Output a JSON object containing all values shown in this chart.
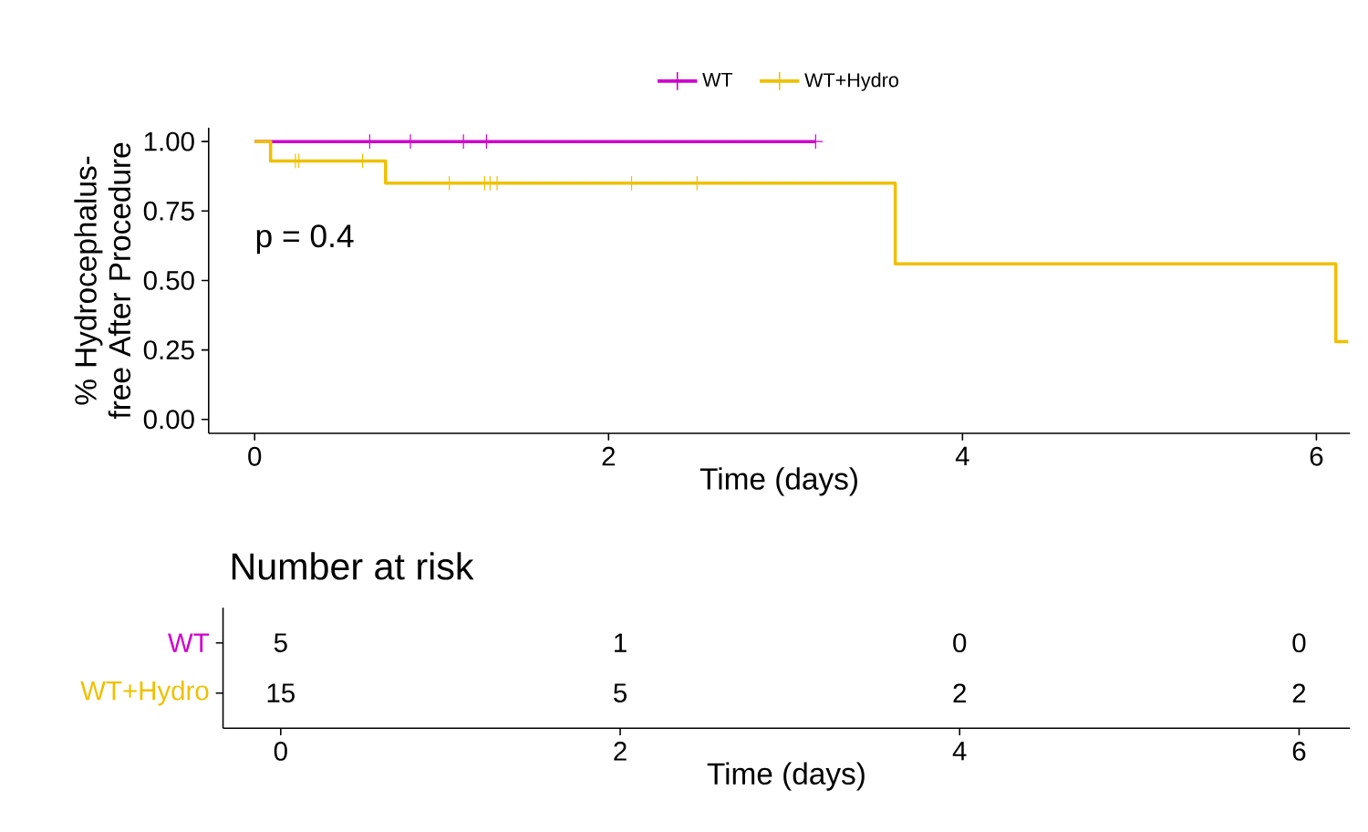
{
  "chart_data": [
    {
      "type": "step",
      "xlabel": "Time (days)",
      "ylabel": "% Hydrocephalus-free After Procedure",
      "xlim": [
        -0.26,
        6.19
      ],
      "xticks": [
        0,
        2,
        4,
        6
      ],
      "ylim": [
        -0.05,
        1.05
      ],
      "yticks": [
        {
          "value": 0,
          "label": "0.00"
        },
        {
          "value": 0.25,
          "label": "0.25"
        },
        {
          "value": 0.5,
          "label": "0.50"
        },
        {
          "value": 0.75,
          "label": "0.75"
        },
        {
          "value": 1,
          "label": "1.00"
        }
      ],
      "legend": "top",
      "annotations": [
        "p = 0.4"
      ],
      "series": [
        {
          "name": "WT",
          "color": "#cd00cd",
          "x": [
            0,
            3.17
          ],
          "values": [
            1,
            1
          ]
        },
        {
          "name": "WT+Hydro",
          "color": "#efc000",
          "x": [
            0,
            0.09,
            0.74,
            3.62,
            6.11,
            6.18
          ],
          "values": [
            1,
            0.93,
            0.85,
            0.56,
            0.28,
            0.28
          ]
        },
        {
          "type": "scatter",
          "marker": "cross",
          "color": "#cd00cd",
          "x": [
            0.65,
            0.88,
            1.18,
            1.31,
            3.17
          ],
          "values": [
            1,
            1,
            1,
            1,
            1
          ]
        },
        {
          "type": "scatter",
          "marker": "cross",
          "color": "#efc000",
          "x": [
            0.23,
            0.25,
            0.61,
            1.1,
            1.3,
            1.33,
            1.37,
            2.13,
            2.5
          ],
          "values": [
            0.93,
            0.93,
            0.93,
            0.85,
            0.85,
            0.85,
            0.85,
            0.85,
            0.85
          ]
        }
      ]
    },
    {
      "type": "heatmap",
      "title": "Number at risk",
      "xlabel": "Time (days)",
      "categories": [
        "0",
        "2",
        "4",
        "6"
      ],
      "y_categories": [
        "WT",
        "WT+Hydro"
      ],
      "cells": [
        [
          5,
          1,
          0,
          0
        ],
        [
          15,
          5,
          2,
          2
        ]
      ],
      "data_labels": true
    }
  ]
}
